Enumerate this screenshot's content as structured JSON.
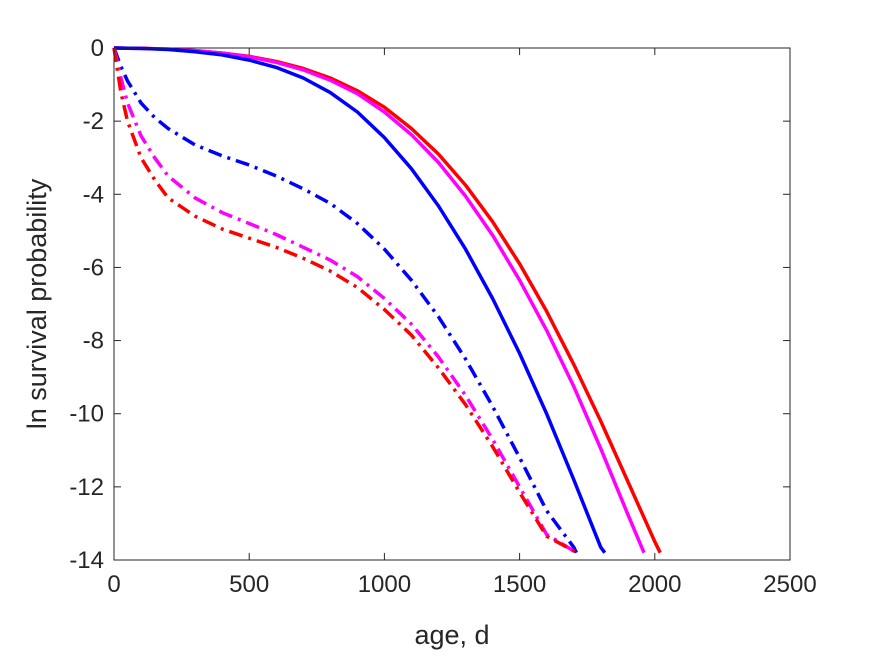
{
  "chart_data": {
    "type": "line",
    "title": "",
    "xlabel": "age, d",
    "ylabel": "ln survival probability",
    "xlim": [
      0,
      2500
    ],
    "ylim": [
      -14,
      0
    ],
    "xticks": [
      0,
      500,
      1000,
      1500,
      2000,
      2500
    ],
    "yticks": [
      0,
      -2,
      -4,
      -6,
      -8,
      -10,
      -12,
      -14
    ],
    "xtick_labels": [
      "0",
      "500",
      "1000",
      "1500",
      "2000",
      "2500"
    ],
    "ytick_labels": [
      "0",
      "-2",
      "-4",
      "-6",
      "-8",
      "-10",
      "-12",
      "-14"
    ],
    "grid": false,
    "legend": "none",
    "series": [
      {
        "color": "#ff0000",
        "style": "solid",
        "x": [
          0,
          100,
          200,
          300,
          400,
          500,
          600,
          700,
          800,
          900,
          1000,
          1100,
          1200,
          1300,
          1400,
          1500,
          1600,
          1700,
          1800,
          1900,
          2000,
          2020
        ],
        "y": [
          0,
          -0.01,
          -0.03,
          -0.07,
          -0.14,
          -0.23,
          -0.37,
          -0.56,
          -0.82,
          -1.17,
          -1.62,
          -2.2,
          -2.9,
          -3.75,
          -4.75,
          -5.9,
          -7.2,
          -8.65,
          -10.2,
          -11.85,
          -13.5,
          -13.8
        ]
      },
      {
        "color": "#ff00ff",
        "style": "solid",
        "x": [
          0,
          100,
          200,
          300,
          400,
          500,
          600,
          700,
          800,
          900,
          1000,
          1100,
          1200,
          1300,
          1400,
          1500,
          1600,
          1700,
          1800,
          1900,
          1960
        ],
        "y": [
          0,
          -0.01,
          -0.03,
          -0.07,
          -0.14,
          -0.24,
          -0.39,
          -0.6,
          -0.88,
          -1.25,
          -1.75,
          -2.37,
          -3.13,
          -4.05,
          -5.12,
          -6.35,
          -7.72,
          -9.25,
          -10.95,
          -12.75,
          -13.8
        ]
      },
      {
        "color": "#0000ff",
        "style": "solid",
        "x": [
          0,
          100,
          200,
          300,
          400,
          500,
          600,
          700,
          800,
          900,
          1000,
          1100,
          1200,
          1300,
          1400,
          1500,
          1600,
          1700,
          1800,
          1815
        ],
        "y": [
          0,
          -0.01,
          -0.04,
          -0.1,
          -0.19,
          -0.33,
          -0.53,
          -0.82,
          -1.22,
          -1.75,
          -2.45,
          -3.3,
          -4.32,
          -5.5,
          -6.85,
          -8.35,
          -10.0,
          -11.8,
          -13.65,
          -13.8
        ]
      },
      {
        "color": "#0000ff",
        "style": "dashdot",
        "x": [
          0,
          25,
          50,
          100,
          150,
          200,
          300,
          400,
          500,
          600,
          700,
          800,
          900,
          1000,
          1100,
          1200,
          1300,
          1400,
          1500,
          1600,
          1700,
          1710
        ],
        "y": [
          0,
          -0.5,
          -0.9,
          -1.5,
          -1.9,
          -2.2,
          -2.65,
          -2.95,
          -3.2,
          -3.5,
          -3.85,
          -4.25,
          -4.8,
          -5.5,
          -6.35,
          -7.35,
          -8.5,
          -9.8,
          -11.2,
          -12.65,
          -13.65,
          -13.8
        ]
      },
      {
        "color": "#ff00ff",
        "style": "dashdot",
        "x": [
          0,
          25,
          50,
          100,
          150,
          200,
          300,
          400,
          500,
          600,
          700,
          800,
          900,
          1000,
          1100,
          1200,
          1300,
          1400,
          1500,
          1600,
          1700,
          1710
        ],
        "y": [
          0,
          -0.8,
          -1.5,
          -2.4,
          -3.0,
          -3.5,
          -4.1,
          -4.5,
          -4.8,
          -5.1,
          -5.45,
          -5.8,
          -6.25,
          -6.85,
          -7.55,
          -8.45,
          -9.5,
          -10.7,
          -12.0,
          -13.3,
          -13.75,
          -13.8
        ]
      },
      {
        "color": "#ff0000",
        "style": "dashdot",
        "x": [
          0,
          25,
          50,
          100,
          150,
          200,
          300,
          400,
          500,
          600,
          700,
          800,
          900,
          1000,
          1100,
          1200,
          1300,
          1400,
          1500,
          1600,
          1700,
          1710
        ],
        "y": [
          0,
          -1.2,
          -2.0,
          -3.0,
          -3.6,
          -4.1,
          -4.6,
          -4.95,
          -5.2,
          -5.45,
          -5.75,
          -6.1,
          -6.55,
          -7.15,
          -7.85,
          -8.75,
          -9.75,
          -10.9,
          -12.15,
          -13.35,
          -13.75,
          -13.8
        ]
      }
    ]
  }
}
